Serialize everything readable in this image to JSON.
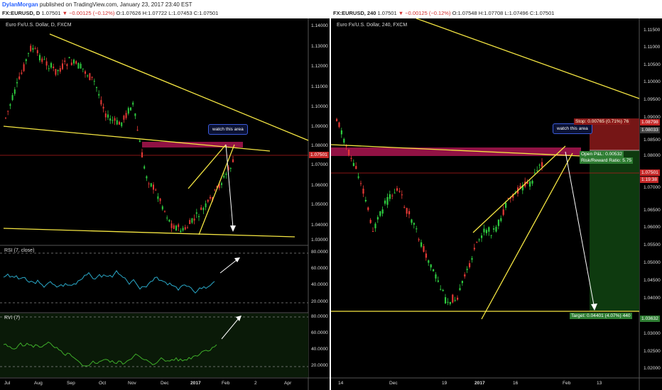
{
  "publish": {
    "author": "DylanMorgan",
    "text": " published on TradingView.com, January 23, 2017 23:40 EST"
  },
  "left": {
    "header": {
      "symbol": "FX:EURUSD, D",
      "values": "1.07501",
      "change": "▼ −0.00125 (−0.12%)",
      "ohlc": "O:1.07626 H:1.07722 L:1.07453 C:1.07501"
    },
    "title": "Euro Fx/U.S. Dollar, D, FXCM",
    "watch": "watch this area",
    "price_axis": [
      "1.14000",
      "1.13000",
      "1.12000",
      "1.11000",
      "1.10000",
      "1.09000",
      "1.08000",
      "1.07000",
      "1.06000",
      "1.05000",
      "1.04000",
      "1.03000"
    ],
    "last_price": "1.07501",
    "rsi": {
      "label": "RSI (7, close)",
      "axis": [
        "80.0000",
        "60.0000",
        "40.0000",
        "20.0000"
      ]
    },
    "rvi": {
      "label": "RVI (7)",
      "axis": [
        "80.0000",
        "60.0000",
        "40.0000",
        "20.0000"
      ]
    },
    "time_axis": [
      "Jul",
      "Aug",
      "Sep",
      "Oct",
      "Nov",
      "Dec",
      "2017",
      "Feb",
      "2",
      "Apr"
    ]
  },
  "right": {
    "header": {
      "symbol": "FX:EURUSD, 240",
      "values": "1.07501",
      "change": "▼ −0.00125 (−0.12%)",
      "ohlc": "O:1.07548 H:1.07708 L:1.07496 C:1.07501"
    },
    "title": "Euro Fx/U.S. Dollar, 240, FXCM",
    "watch": "watch this area",
    "stop": "Stop: 0.00765 (0.71%) 76",
    "open_pl": "Open P&L: 0.00532",
    "rr": "Risk/Reward Ratio: 5.75",
    "target": "Target: 0.04401 (4.07%) 440",
    "price_axis": [
      "1.11500",
      "1.11000",
      "1.10500",
      "1.10000",
      "1.09500",
      "1.09000",
      "1.08500",
      "1.08000",
      "1.07500",
      "1.07000",
      "1.06500",
      "1.06000",
      "1.05500",
      "1.05000",
      "1.04500",
      "1.04000",
      "1.03500",
      "1.03000",
      "1.02500",
      "1.02000"
    ],
    "tags": {
      "stop": "1.08798",
      "mid": "1.08033",
      "last": "1.07501",
      "timer": "1:19:38",
      "target": "1.03632"
    },
    "time_axis": [
      "14",
      "Dec",
      "19",
      "2017",
      "16",
      "Feb",
      "13"
    ]
  },
  "colors": {
    "up": "#2ecc40",
    "down": "#e53935",
    "trend": "#f5e642",
    "zone": "#c2185b",
    "rsi": "#2aa9c9",
    "rvi": "#3fae2a"
  }
}
